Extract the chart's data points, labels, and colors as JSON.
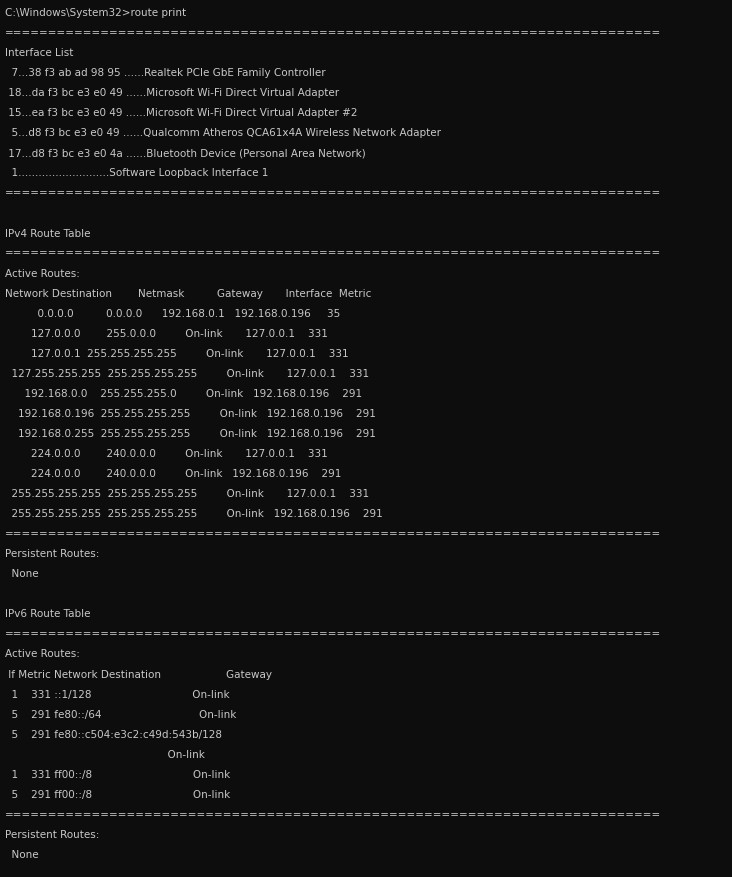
{
  "background_color": "#0d0d0d",
  "text_color": "#c8c8c8",
  "font_family": "Courier New",
  "font_size": 7.5,
  "figsize": [
    7.32,
    8.78
  ],
  "dpi": 100,
  "lines": [
    "C:\\Windows\\System32>route print",
    "===========================================================================",
    "Interface List",
    "  7...38 f3 ab ad 98 95 ......Realtek PCIe GbE Family Controller",
    " 18...da f3 bc e3 e0 49 ......Microsoft Wi-Fi Direct Virtual Adapter",
    " 15...ea f3 bc e3 e0 49 ......Microsoft Wi-Fi Direct Virtual Adapter #2",
    "  5...d8 f3 bc e3 e0 49 ......Qualcomm Atheros QCA61x4A Wireless Network Adapter",
    " 17...d8 f3 bc e3 e0 4a ......Bluetooth Device (Personal Area Network)",
    "  1...........................Software Loopback Interface 1",
    "===========================================================================",
    "",
    "IPv4 Route Table",
    "===========================================================================",
    "Active Routes:",
    "Network Destination        Netmask          Gateway       Interface  Metric",
    "          0.0.0.0          0.0.0.0      192.168.0.1   192.168.0.196     35",
    "        127.0.0.0        255.0.0.0         On-link       127.0.0.1    331",
    "        127.0.0.1  255.255.255.255         On-link       127.0.0.1    331",
    "  127.255.255.255  255.255.255.255         On-link       127.0.0.1    331",
    "      192.168.0.0    255.255.255.0         On-link   192.168.0.196    291",
    "    192.168.0.196  255.255.255.255         On-link   192.168.0.196    291",
    "    192.168.0.255  255.255.255.255         On-link   192.168.0.196    291",
    "        224.0.0.0        240.0.0.0         On-link       127.0.0.1    331",
    "        224.0.0.0        240.0.0.0         On-link   192.168.0.196    291",
    "  255.255.255.255  255.255.255.255         On-link       127.0.0.1    331",
    "  255.255.255.255  255.255.255.255         On-link   192.168.0.196    291",
    "===========================================================================",
    "Persistent Routes:",
    "  None",
    "",
    "IPv6 Route Table",
    "===========================================================================",
    "Active Routes:",
    " If Metric Network Destination                    Gateway",
    "  1    331 ::1/128                               On-link",
    "  5    291 fe80::/64                              On-link",
    "  5    291 fe80::c504:e3c2:c49d:543b/128",
    "                                                  On-link",
    "  1    331 ff00::/8                               On-link",
    "  5    291 ff00::/8                               On-link",
    "===========================================================================",
    "Persistent Routes:",
    "  None"
  ]
}
